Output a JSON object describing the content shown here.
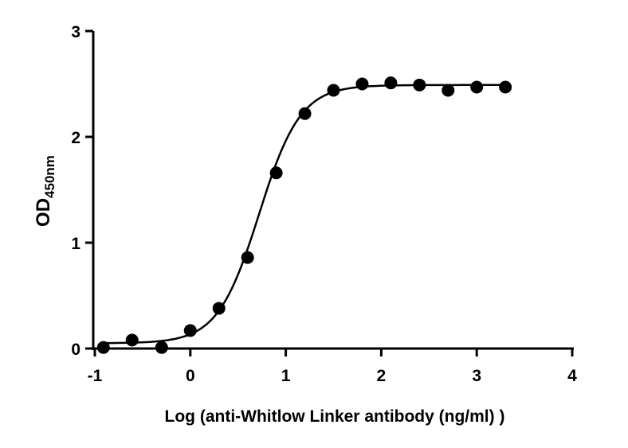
{
  "chart_data": {
    "type": "scatter",
    "title": "",
    "xlabel": "Log (anti-Whitlow Linker antibody (ng/ml) )",
    "ylabel": "OD",
    "ylabel_subscript": "450nm",
    "xlim": [
      -1,
      4
    ],
    "ylim": [
      0,
      3
    ],
    "xticks": [
      "-1",
      "0",
      "1",
      "2",
      "3",
      "4"
    ],
    "yticks": [
      "0",
      "1",
      "2",
      "3"
    ],
    "grid": false,
    "x": [
      -0.91,
      -0.61,
      -0.3,
      0.0,
      0.3,
      0.6,
      0.9,
      1.2,
      1.5,
      1.8,
      2.1,
      2.4,
      2.7,
      3.0,
      3.3
    ],
    "y": [
      0.01,
      0.08,
      0.01,
      0.17,
      0.38,
      0.86,
      1.66,
      2.22,
      2.44,
      2.5,
      2.51,
      2.49,
      2.44,
      2.47,
      2.47
    ],
    "fit": {
      "model": "4PL sigmoid",
      "bottom": 0.05,
      "top": 2.49,
      "logEC50": 0.72,
      "hill": 2.0
    },
    "marker_color": "#000000"
  }
}
